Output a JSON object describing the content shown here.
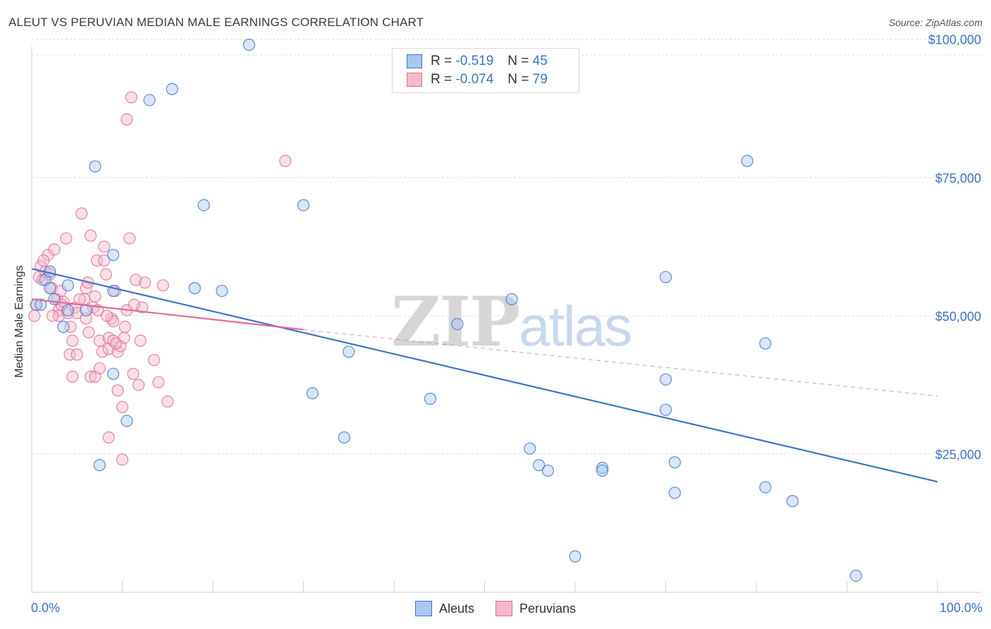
{
  "title": "ALEUT VS PERUVIAN MEDIAN MALE EARNINGS CORRELATION CHART",
  "source": "Source: ZipAtlas.com",
  "watermark": {
    "zip": "ZIP",
    "atlas": "atlas"
  },
  "legend": {
    "rows": [
      {
        "r_label": "R =",
        "r_value": "-0.519",
        "n_label": "N =",
        "n_value": "45",
        "color": "#a8c8f0"
      },
      {
        "r_label": "R =",
        "r_value": "-0.074",
        "n_label": "N =",
        "n_value": "79",
        "color": "#f7b8cc"
      }
    ]
  },
  "bottom_legend": [
    "Aleuts",
    "Peruvians"
  ],
  "chart_data": {
    "type": "scatter",
    "xlabel": "",
    "ylabel": "Median Male Earnings",
    "xlim": [
      0,
      100
    ],
    "ylim": [
      0,
      102000
    ],
    "x_tick_labels": [
      "0.0%",
      "100.0%"
    ],
    "y_ticks": [
      25000,
      50000,
      75000,
      100000
    ],
    "y_tick_labels": [
      "$25,000",
      "$50,000",
      "$75,000",
      "$100,000"
    ],
    "grid": true,
    "colors": {
      "aleuts": "#3c74c8",
      "peruvians": "#e06a96",
      "aleuts_fill": "#a8c8f0",
      "peruvians_fill": "#f7b8cc"
    },
    "series": [
      {
        "name": "Aleuts",
        "trend": {
          "x": [
            0,
            100
          ],
          "y": [
            58500,
            20000
          ]
        },
        "points": [
          [
            0.5,
            52000
          ],
          [
            1.5,
            56500
          ],
          [
            2,
            55000
          ],
          [
            3.5,
            48000
          ],
          [
            4,
            51000
          ],
          [
            6,
            51000
          ],
          [
            7,
            77000
          ],
          [
            7.5,
            23000
          ],
          [
            9,
            54500
          ],
          [
            9,
            39500
          ],
          [
            9,
            61000
          ],
          [
            10.5,
            31000
          ],
          [
            13,
            89000
          ],
          [
            15.5,
            91000
          ],
          [
            18,
            55000
          ],
          [
            19,
            70000
          ],
          [
            21,
            54500
          ],
          [
            24,
            99000
          ],
          [
            30,
            70000
          ],
          [
            31,
            36000
          ],
          [
            34.5,
            28000
          ],
          [
            35,
            43500
          ],
          [
            44,
            35000
          ],
          [
            47,
            48500
          ],
          [
            53,
            53000
          ],
          [
            55,
            26000
          ],
          [
            56,
            23000
          ],
          [
            57,
            22000
          ],
          [
            60,
            6500
          ],
          [
            63,
            22500
          ],
          [
            63,
            22000
          ],
          [
            70,
            38500
          ],
          [
            70,
            33000
          ],
          [
            70,
            57000
          ],
          [
            71,
            18000
          ],
          [
            71,
            23500
          ],
          [
            79,
            78000
          ],
          [
            81,
            45000
          ],
          [
            81,
            19000
          ],
          [
            84,
            16500
          ],
          [
            91,
            3000
          ],
          [
            1,
            52000
          ],
          [
            2,
            58000
          ],
          [
            4,
            55500
          ],
          [
            2.5,
            53000
          ]
        ]
      },
      {
        "name": "Peruvians",
        "trend": {
          "x": [
            0,
            30
          ],
          "y": [
            53000,
            47500
          ]
        },
        "trend_ext": {
          "x": [
            30,
            100
          ],
          "y": [
            47500,
            35500
          ]
        },
        "points": [
          [
            0.5,
            52000
          ],
          [
            0.8,
            57000
          ],
          [
            1,
            59000
          ],
          [
            1.2,
            56500
          ],
          [
            1.5,
            58000
          ],
          [
            1.8,
            61000
          ],
          [
            2,
            57500
          ],
          [
            2.2,
            55000
          ],
          [
            2.5,
            62000
          ],
          [
            2.8,
            53000
          ],
          [
            3,
            51000
          ],
          [
            3,
            50000
          ],
          [
            3.2,
            54500
          ],
          [
            3.5,
            52500
          ],
          [
            3.8,
            64000
          ],
          [
            4,
            50500
          ],
          [
            4.2,
            43000
          ],
          [
            4.5,
            39000
          ],
          [
            4.5,
            45500
          ],
          [
            4.8,
            51500
          ],
          [
            5,
            50500
          ],
          [
            5,
            43000
          ],
          [
            5.5,
            68500
          ],
          [
            5.8,
            53000
          ],
          [
            6,
            49500
          ],
          [
            6,
            55000
          ],
          [
            6.2,
            56000
          ],
          [
            6.5,
            64500
          ],
          [
            6.5,
            39000
          ],
          [
            6.8,
            51500
          ],
          [
            7,
            53500
          ],
          [
            7,
            39000
          ],
          [
            7.2,
            60000
          ],
          [
            7.5,
            40500
          ],
          [
            7.5,
            45500
          ],
          [
            7.8,
            43500
          ],
          [
            8,
            60000
          ],
          [
            8,
            62500
          ],
          [
            8.2,
            57500
          ],
          [
            8.5,
            46000
          ],
          [
            8.5,
            44000
          ],
          [
            8.5,
            28000
          ],
          [
            8.8,
            49500
          ],
          [
            9,
            45500
          ],
          [
            9,
            49000
          ],
          [
            9.2,
            54500
          ],
          [
            9.5,
            43500
          ],
          [
            9.5,
            36500
          ],
          [
            9.8,
            44500
          ],
          [
            10,
            33500
          ],
          [
            10,
            24000
          ],
          [
            10.2,
            46000
          ],
          [
            10.5,
            51000
          ],
          [
            10.5,
            85500
          ],
          [
            10.8,
            64000
          ],
          [
            11,
            89500
          ],
          [
            11.2,
            39500
          ],
          [
            11.5,
            56500
          ],
          [
            11.8,
            37500
          ],
          [
            12,
            45500
          ],
          [
            12.2,
            51500
          ],
          [
            12.5,
            56000
          ],
          [
            13.5,
            42000
          ],
          [
            14,
            38000
          ],
          [
            14.5,
            55500
          ],
          [
            15,
            34500
          ],
          [
            28,
            78000
          ],
          [
            0.3,
            50000
          ],
          [
            1.3,
            60000
          ],
          [
            2.3,
            50000
          ],
          [
            3.3,
            52000
          ],
          [
            4.3,
            48000
          ],
          [
            5.3,
            53000
          ],
          [
            6.3,
            47000
          ],
          [
            7.3,
            51000
          ],
          [
            8.3,
            50000
          ],
          [
            9.3,
            45000
          ],
          [
            10.3,
            48000
          ],
          [
            11.3,
            52000
          ]
        ]
      }
    ]
  }
}
